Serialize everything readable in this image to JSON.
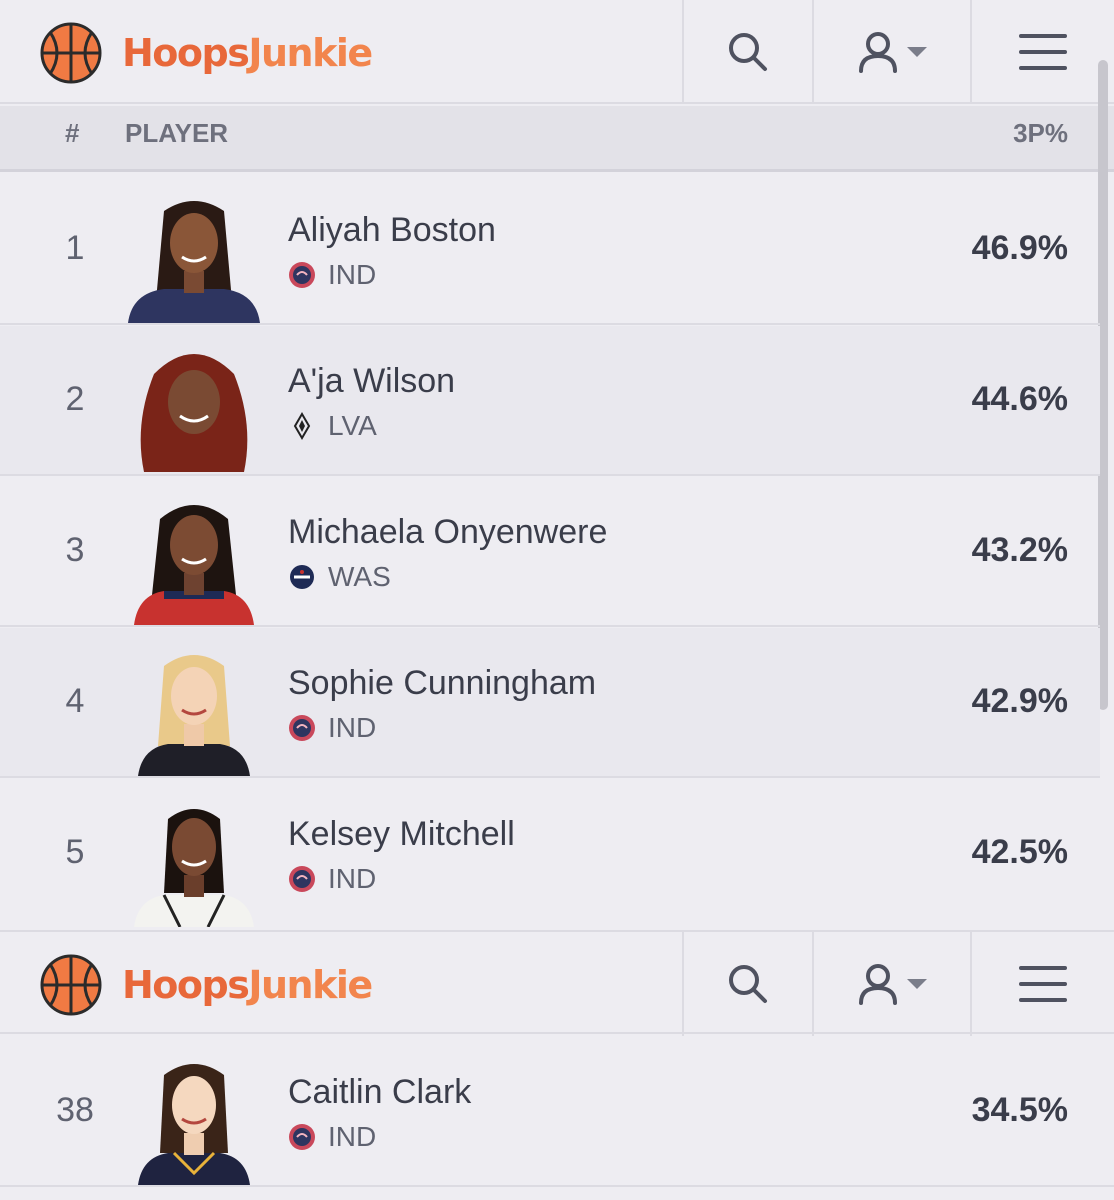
{
  "brand": {
    "name_part1": "Hoops",
    "name_part2": "Junkie"
  },
  "header_icons": {
    "search": "search-icon",
    "user": "user-icon",
    "dropdown": "caret-down-icon",
    "menu": "hamburger-menu-icon"
  },
  "columns": {
    "rank": "#",
    "player": "PLAYER",
    "stat": "3P%"
  },
  "rows": [
    {
      "rank": "1",
      "name": "Aliyah Boston",
      "team": "IND",
      "stat": "46.9%"
    },
    {
      "rank": "2",
      "name": "A'ja Wilson",
      "team": "LVA",
      "stat": "44.6%"
    },
    {
      "rank": "3",
      "name": "Michaela Onyenwere",
      "team": "WAS",
      "stat": "43.2%"
    },
    {
      "rank": "4",
      "name": "Sophie Cunningham",
      "team": "IND",
      "stat": "42.9%"
    },
    {
      "rank": "5",
      "name": "Kelsey Mitchell",
      "team": "IND",
      "stat": "42.5%"
    }
  ],
  "second_section": {
    "rows": [
      {
        "rank": "38",
        "name": "Caitlin Clark",
        "team": "IND",
        "stat": "34.5%"
      }
    ]
  },
  "colors": {
    "brand_orange": "#e8683a",
    "background": "#eeedf2",
    "text": "#3a3d4a"
  }
}
